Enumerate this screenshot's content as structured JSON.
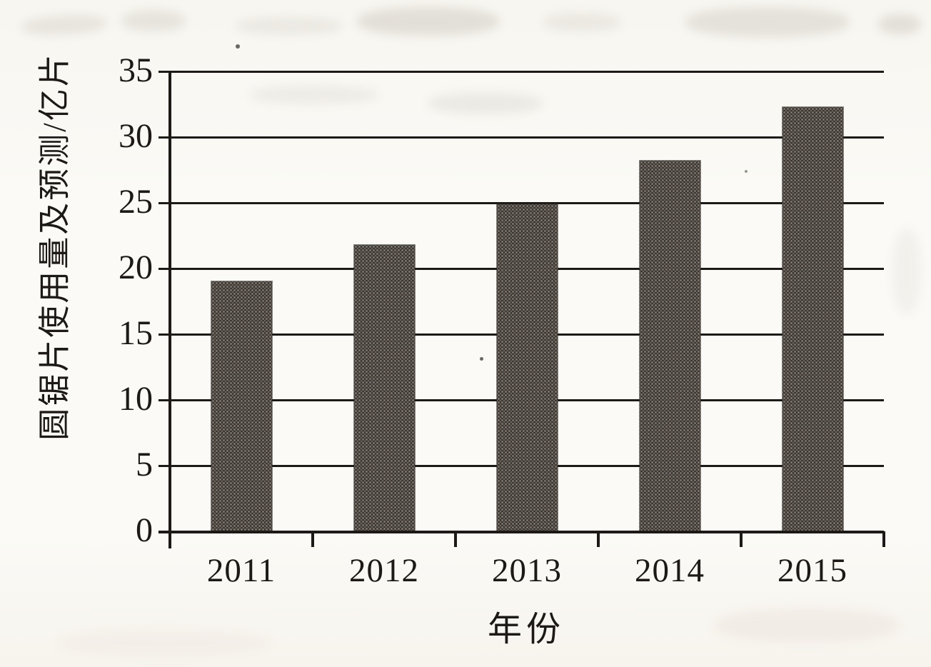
{
  "chart_data": {
    "type": "bar",
    "title": "",
    "categories": [
      "2011",
      "2012",
      "2013",
      "2014",
      "2015"
    ],
    "values": [
      19.0,
      21.8,
      24.9,
      28.2,
      32.3
    ],
    "xlabel": "年份",
    "ylabel": "圆锯片使用量及预测/亿片",
    "ylim": [
      0,
      35
    ],
    "yticks": [
      0,
      5,
      10,
      15,
      20,
      25,
      30,
      35
    ],
    "grid": "horizontal",
    "legend": "none",
    "colors": {
      "bar": "#38332e",
      "ink": "#1c1916",
      "paper": "#faf8f3"
    }
  }
}
